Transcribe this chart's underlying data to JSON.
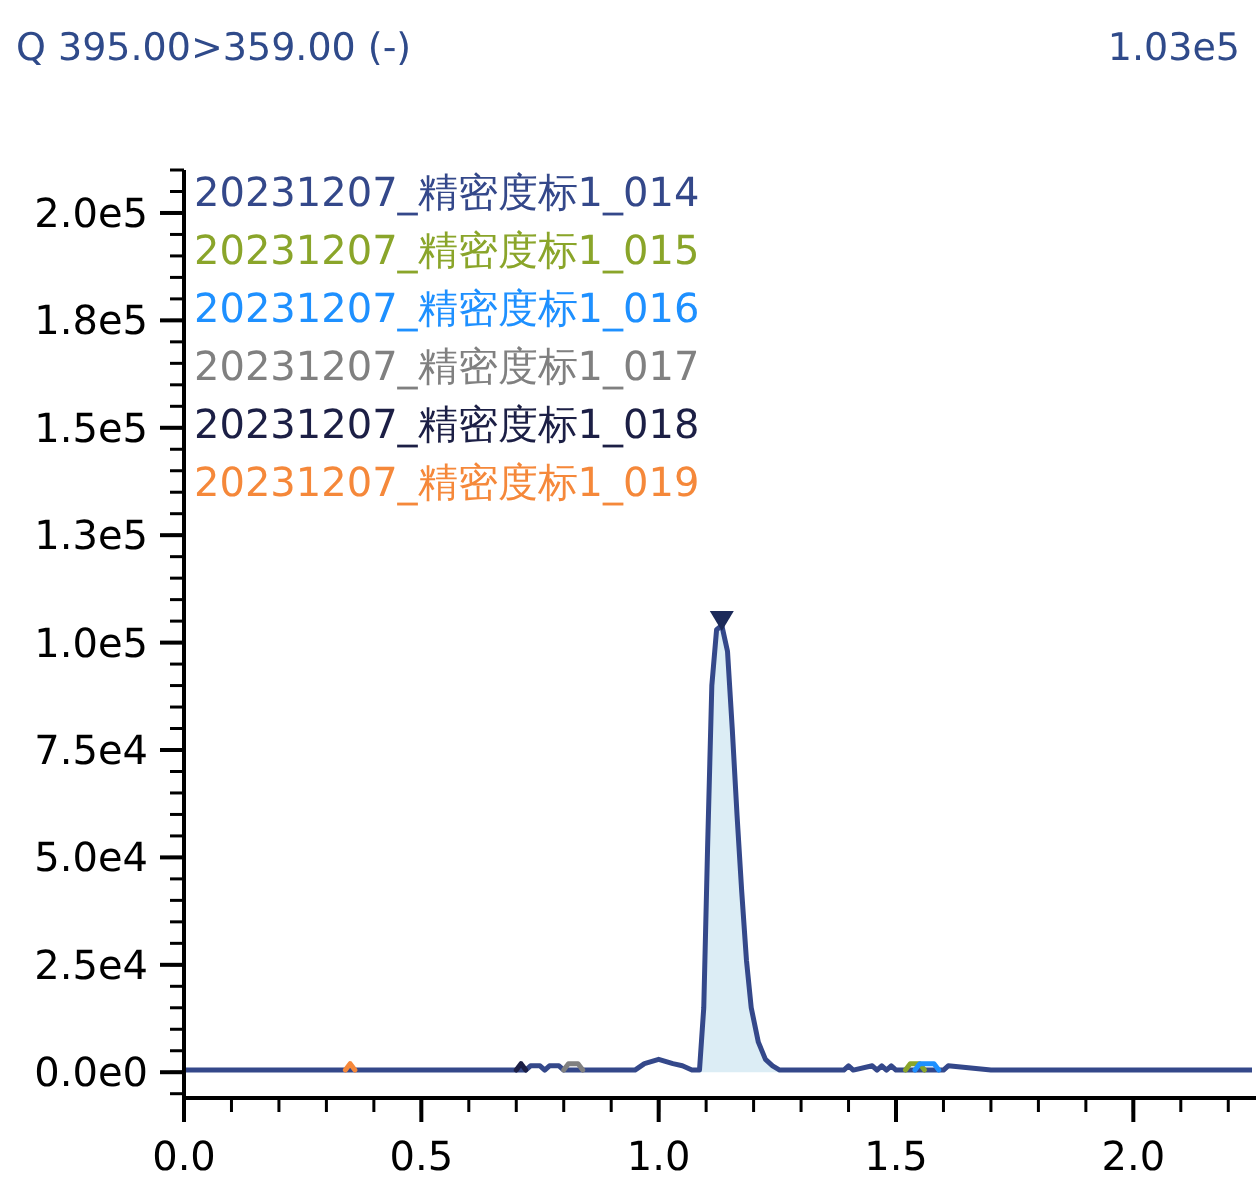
{
  "chart_data": {
    "type": "line",
    "title": "Q 395.00>359.00 (-)",
    "annotations": [
      "1.03e5"
    ],
    "x": [
      0,
      0.35,
      0.72,
      0.73,
      0.75,
      0.76,
      0.77,
      0.79,
      0.8,
      0.95,
      0.97,
      1.0,
      1.03,
      1.05,
      1.07,
      1.086,
      1.095,
      1.103,
      1.112,
      1.122,
      1.133,
      1.145,
      1.155,
      1.165,
      1.175,
      1.185,
      1.195,
      1.21,
      1.225,
      1.24,
      1.255,
      1.39,
      1.4,
      1.41,
      1.45,
      1.46,
      1.47,
      1.48,
      1.49,
      1.5,
      1.6,
      1.61,
      1.7,
      2.25
    ],
    "series": [
      {
        "name": "20231207_精密度标1_014",
        "color": "#34488a",
        "values": [
          500,
          500,
          500,
          1500,
          1500,
          500,
          1500,
          1500,
          500,
          500,
          2000,
          3000,
          2000,
          1500,
          500,
          500,
          15000,
          52000,
          90000,
          103000,
          104000,
          98000,
          80000,
          60000,
          42000,
          26000,
          15000,
          7000,
          3000,
          1500,
          500,
          500,
          1500,
          500,
          1500,
          500,
          1500,
          500,
          1500,
          500,
          500,
          1500,
          500,
          500
        ]
      },
      {
        "name": "20231207_精密度标1_015",
        "color": "#8aa52a",
        "x": [
          1.52,
          1.53,
          1.55,
          1.56
        ],
        "values": [
          500,
          2000,
          2000,
          500
        ]
      },
      {
        "name": "20231207_精密度标1_016",
        "color": "#1e90ff",
        "x": [
          1.54,
          1.55,
          1.58,
          1.59
        ],
        "values": [
          500,
          2000,
          2000,
          500
        ]
      },
      {
        "name": "20231207_精密度标1_017",
        "color": "#808080",
        "x": [
          0.8,
          0.81,
          0.83,
          0.84
        ],
        "values": [
          500,
          2000,
          2000,
          500
        ]
      },
      {
        "name": "20231207_精密度标1_018",
        "color": "#1c1f45",
        "x": [
          0.7,
          0.71,
          0.72
        ],
        "values": [
          500,
          2000,
          500
        ]
      },
      {
        "name": "20231207_精密度标1_019",
        "color": "#f5883a",
        "x": [
          0.34,
          0.35,
          0.36
        ],
        "values": [
          500,
          2000,
          500
        ]
      },
      {
        "type": "area",
        "color": "#dcedf5",
        "x": [
          1.086,
          1.095,
          1.103,
          1.112,
          1.122,
          1.133,
          1.145,
          1.155,
          1.165,
          1.175,
          1.185,
          1.195,
          1.21,
          1.225,
          1.24,
          1.255
        ],
        "values": [
          500,
          15000,
          52000,
          90000,
          103000,
          104000,
          98000,
          80000,
          60000,
          42000,
          26000,
          15000,
          7000,
          3000,
          1500,
          500
        ]
      },
      {
        "type": "scatter",
        "color": "#1c2a5a",
        "marker": "triangle",
        "x": [
          1.133
        ],
        "values": [
          105000
        ]
      }
    ],
    "xlim": [
      0,
      2.25
    ],
    "xticks": [
      {
        "value": 0,
        "label": "0.0"
      },
      0.5,
      {
        "value": 1,
        "label": "1.0"
      },
      1.5,
      {
        "value": 2,
        "label": "2.0"
      }
    ],
    "ylim": [
      -6000,
      210000
    ],
    "yticks": [
      {
        "value": 0,
        "label": "0.0e0"
      },
      {
        "value": 25000,
        "label": "2.5e4"
      },
      {
        "value": 50000,
        "label": "5.0e4"
      },
      {
        "value": 75000,
        "label": "7.5e4"
      },
      {
        "value": 100000,
        "label": "1.0e5"
      },
      {
        "value": 125000,
        "label": "1.3e5"
      },
      {
        "value": 150000,
        "label": "1.5e5"
      },
      {
        "value": 175000,
        "label": "1.8e5"
      },
      {
        "value": 200000,
        "label": "2.0e5"
      }
    ],
    "legend": "top left",
    "grid": false
  }
}
